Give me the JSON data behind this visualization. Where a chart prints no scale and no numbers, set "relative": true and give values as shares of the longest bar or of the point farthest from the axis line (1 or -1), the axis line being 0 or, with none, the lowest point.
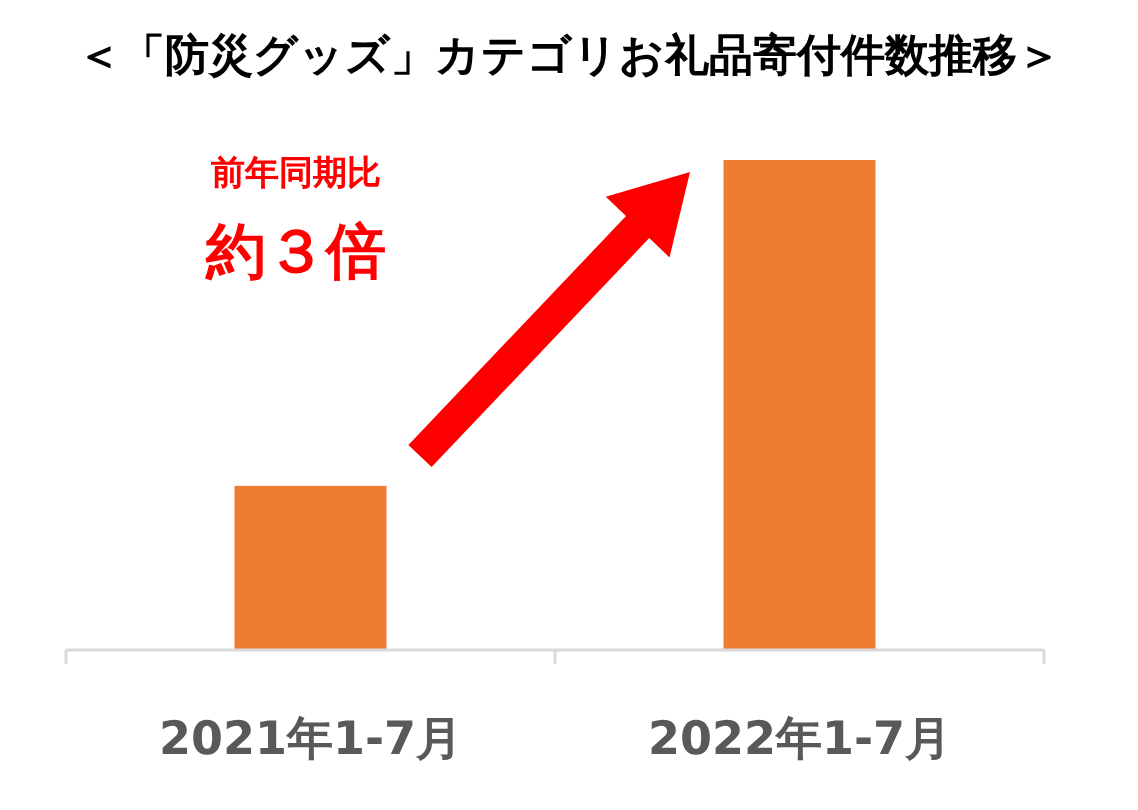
{
  "chart_data": {
    "type": "bar",
    "title": "＜「防災グッズ」カテゴリお礼品寄付件数推移＞",
    "categories": [
      "2021年1-7月",
      "2022年1-7月"
    ],
    "values": [
      0.335,
      1
    ],
    "color": "#ed7d31",
    "relative": true,
    "annotations": [
      "前年同期比",
      "約３倍"
    ]
  }
}
